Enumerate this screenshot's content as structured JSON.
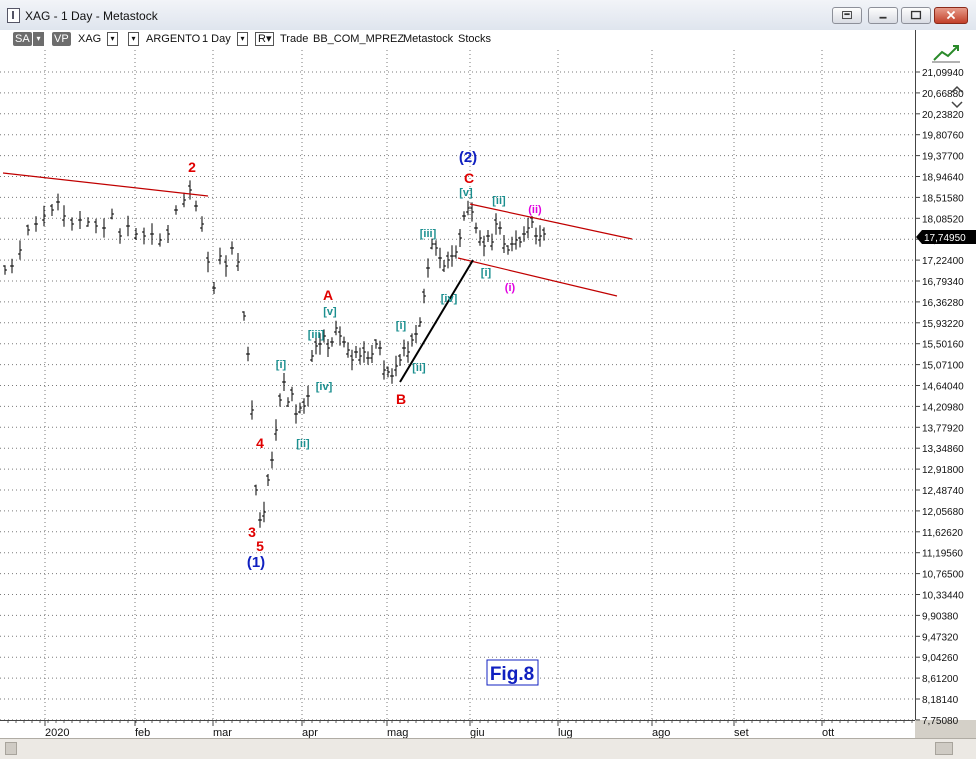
{
  "window": {
    "title": "XAG - 1 Day - Metastock"
  },
  "toolbar": {
    "sa_label": "SA",
    "vp_label": "VP",
    "symbol": "XAG",
    "name": "ARGENTO",
    "period": "1 Day",
    "r_label": "R",
    "trade": "Trade",
    "template": "BB_COM_MPREZ",
    "source": "Metastock",
    "category": "Stocks"
  },
  "chart_data": {
    "type": "ohlc",
    "x_labels": [
      "2020",
      "feb",
      "mar",
      "apr",
      "mag",
      "giu",
      "lug",
      "ago",
      "set",
      "ott"
    ],
    "y_ticks": [
      "21,09940",
      "20,66880",
      "20,23820",
      "19,80760",
      "19,37700",
      "18,94640",
      "18,51580",
      "18,08520",
      "17,65460",
      "17,22400",
      "16,79340",
      "16,36280",
      "15,93220",
      "15,50160",
      "15,07100",
      "14,64040",
      "14,20980",
      "13,77920",
      "13,34860",
      "12,91800",
      "12,48740",
      "12,05680",
      "11,62620",
      "11,19560",
      "10,76500",
      "10,33440",
      "9,90380",
      "9,47320",
      "9,04260",
      "8,61200",
      "8,18140",
      "7,75080"
    ],
    "last_price": "17,74950",
    "ylim": [
      7.75,
      21.1
    ],
    "grid": true,
    "waves": [
      {
        "text": "2",
        "color": "#e00000"
      },
      {
        "text": "3",
        "color": "#e00000"
      },
      {
        "text": "4",
        "color": "#e00000"
      },
      {
        "text": "5",
        "color": "#e00000"
      },
      {
        "text": "(1)",
        "color": "#1020c0"
      },
      {
        "text": "(2)",
        "color": "#1020c0"
      },
      {
        "text": "A",
        "color": "#e00000"
      },
      {
        "text": "B",
        "color": "#e00000"
      },
      {
        "text": "C",
        "color": "#e00000"
      },
      {
        "text": "[i]",
        "color": "#1b8f8f"
      },
      {
        "text": "[ii]",
        "color": "#1b8f8f"
      },
      {
        "text": "[iii]",
        "color": "#1b8f8f"
      },
      {
        "text": "[iv]",
        "color": "#1b8f8f"
      },
      {
        "text": "[v]",
        "color": "#1b8f8f"
      },
      {
        "text": "[i]",
        "color": "#1b8f8f"
      },
      {
        "text": "[ii]",
        "color": "#1b8f8f"
      },
      {
        "text": "[iii]",
        "color": "#1b8f8f"
      },
      {
        "text": "[iv]",
        "color": "#1b8f8f"
      },
      {
        "text": "[v]",
        "color": "#1b8f8f"
      },
      {
        "text": "[i]",
        "color": "#1b8f8f"
      },
      {
        "text": "[ii]",
        "color": "#1b8f8f"
      },
      {
        "text": "(i)",
        "color": "#e000e0"
      },
      {
        "text": "(ii)",
        "color": "#e000e0"
      }
    ],
    "figure_label": "Fig.8",
    "colors": {
      "trendline": "#c00000",
      "wedge": "#000000",
      "bars": "#000000",
      "grid": "#7a7a7a"
    }
  }
}
